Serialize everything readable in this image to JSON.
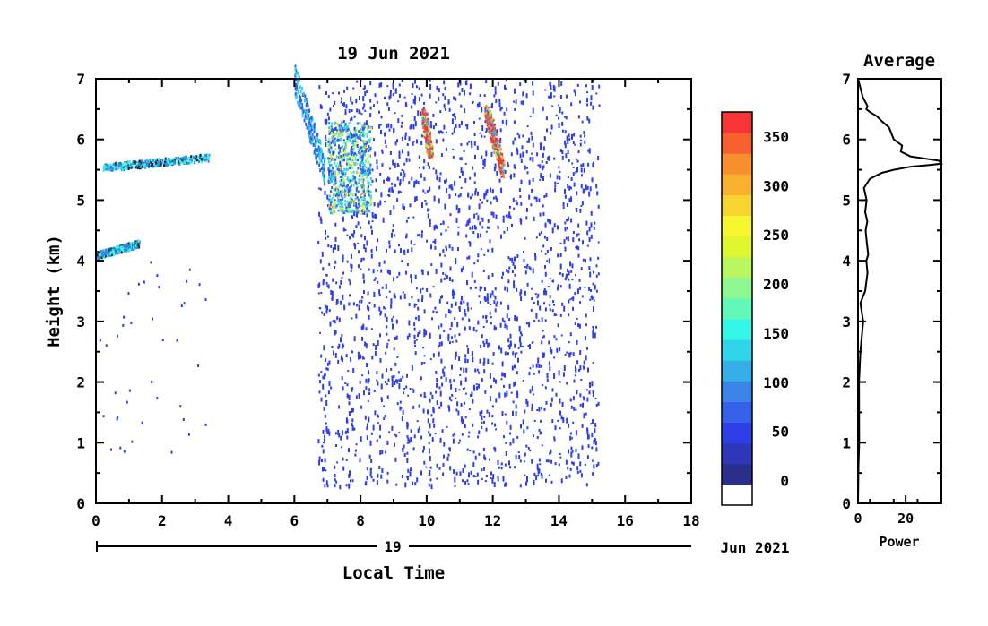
{
  "chart_data": [
    {
      "type": "heatmap",
      "title": "19 Jun 2021",
      "xlabel": "Local Time",
      "ylabel": "Height (km)",
      "xlim": [
        0,
        18
      ],
      "ylim": [
        0,
        7
      ],
      "x_ticks": [
        "0",
        "2",
        "4",
        "6",
        "8",
        "10",
        "12",
        "14",
        "16",
        "18"
      ],
      "y_ticks": [
        "0",
        "1",
        "2",
        "3",
        "4",
        "5",
        "6",
        "7"
      ],
      "date_bar": {
        "label": "19",
        "suffix": "Jun 2021"
      },
      "features": [
        {
          "name": "cloud layer",
          "x": [
            0.2,
            3.4
          ],
          "y": [
            5.55,
            5.72
          ]
        },
        {
          "name": "cloud layer",
          "x": [
            0.0,
            1.3
          ],
          "y": [
            4.1,
            4.3
          ]
        },
        {
          "name": "descending streak",
          "x": [
            6.0,
            6.9
          ],
          "y": [
            5.5,
            7.0
          ]
        },
        {
          "name": "convective plume",
          "x": [
            7.0,
            8.3
          ],
          "y": [
            4.8,
            6.3
          ]
        },
        {
          "name": "strong echo",
          "x": [
            9.9,
            10.1
          ],
          "y": [
            5.8,
            6.4
          ],
          "value": 370
        },
        {
          "name": "strong echo",
          "x": [
            11.8,
            12.3
          ],
          "y": [
            5.5,
            6.5
          ],
          "value": 380
        },
        {
          "name": "noise region",
          "x": [
            6.7,
            15.2
          ],
          "y": [
            0.3,
            7.0
          ],
          "value": 20
        }
      ]
    },
    {
      "type": "colorbar",
      "ticks": [
        "0",
        "50",
        "100",
        "150",
        "200",
        "250",
        "300",
        "350"
      ],
      "values": [
        0,
        50,
        100,
        150,
        200,
        250,
        300,
        350
      ],
      "vmin": -25,
      "vmax": 375,
      "colors": [
        "#ffffff",
        "#2b2f8c",
        "#2f36b7",
        "#2f3fe8",
        "#3560e8",
        "#3a86e8",
        "#35aee8",
        "#2fd4e8",
        "#35f7e8",
        "#60f7b9",
        "#8ff78f",
        "#b9f760",
        "#e0f72f",
        "#f7f72f",
        "#f7d42f",
        "#f7b12f",
        "#f78f2f",
        "#f7602f",
        "#f73535"
      ]
    },
    {
      "type": "line",
      "title": "Average",
      "xlabel": "Power",
      "x_ticks": [
        "0",
        "20"
      ],
      "y_ticks": [
        "0",
        "1",
        "2",
        "3",
        "4",
        "5",
        "6",
        "7"
      ],
      "xlim": [
        0,
        35
      ],
      "ylim": [
        0,
        7
      ],
      "series": [
        {
          "x": [
            0,
            0.2,
            0.5,
            0.4,
            1.0,
            2.2,
            1.0,
            3.0,
            4.0,
            3.5,
            4.3,
            3.7,
            3.2,
            3.9,
            3.0,
            3.6,
            2.5,
            5.0,
            10.0,
            15.0,
            22.0,
            30.0,
            35.0,
            34.0,
            22.0,
            18.0,
            18.5,
            15.0,
            14.0,
            13.0,
            10.0,
            8.0,
            5.0,
            3.5,
            4.0,
            2.0,
            1.0,
            0.0
          ],
          "y": [
            0,
            0.6,
            1.0,
            2.0,
            2.5,
            3.0,
            3.3,
            3.5,
            3.8,
            4.0,
            4.1,
            4.3,
            4.5,
            4.65,
            4.8,
            5.0,
            5.2,
            5.35,
            5.45,
            5.5,
            5.55,
            5.58,
            5.6,
            5.65,
            5.72,
            5.8,
            5.9,
            6.0,
            6.1,
            6.2,
            6.3,
            6.38,
            6.45,
            6.5,
            6.55,
            6.7,
            6.85,
            7.0
          ]
        }
      ]
    }
  ]
}
